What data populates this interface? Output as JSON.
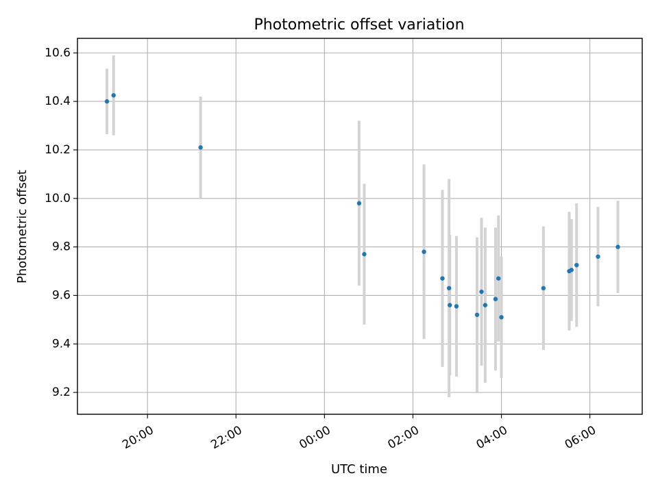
{
  "chart_data": {
    "type": "scatter",
    "title": "Photometric offset variation",
    "xlabel": "UTC time",
    "ylabel": "Photometric offset",
    "x_axis_kind": "time",
    "x_tick_labels": [
      "20:00",
      "22:00",
      "00:00",
      "02:00",
      "04:00",
      "06:00"
    ],
    "y_tick_labels": [
      "9.2",
      "9.4",
      "9.6",
      "9.8",
      "10.0",
      "10.2",
      "10.4",
      "10.6"
    ],
    "xlim": [
      "18:25",
      "07:11"
    ],
    "ylim": [
      9.11,
      10.66
    ],
    "grid": true,
    "legend": false,
    "colors": {
      "marker": "#1f77b4",
      "errorbar": "#d3d3d3",
      "grid": "#b0b0b0"
    },
    "points": [
      {
        "x": "19:05",
        "y": 10.4,
        "err_low": 0.135,
        "err_high": 0.135
      },
      {
        "x": "19:14",
        "y": 10.425,
        "err_low": 0.165,
        "err_high": 0.165
      },
      {
        "x": "21:12",
        "y": 10.21,
        "err_low": 0.21,
        "err_high": 0.21
      },
      {
        "x": "00:47",
        "y": 9.98,
        "err_low": 0.34,
        "err_high": 0.34
      },
      {
        "x": "00:54",
        "y": 9.77,
        "err_low": 0.29,
        "err_high": 0.29
      },
      {
        "x": "02:15",
        "y": 9.78,
        "err_low": 0.36,
        "err_high": 0.36
      },
      {
        "x": "02:40",
        "y": 9.67,
        "err_low": 0.365,
        "err_high": 0.365
      },
      {
        "x": "02:49",
        "y": 9.63,
        "err_low": 0.45,
        "err_high": 0.45
      },
      {
        "x": "02:50",
        "y": 9.56,
        "err_low": 0.29,
        "err_high": 0.29
      },
      {
        "x": "02:59",
        "y": 9.555,
        "err_low": 0.29,
        "err_high": 0.29
      },
      {
        "x": "03:27",
        "y": 9.52,
        "err_low": 0.32,
        "err_high": 0.32
      },
      {
        "x": "03:33",
        "y": 9.615,
        "err_low": 0.305,
        "err_high": 0.305
      },
      {
        "x": "03:38",
        "y": 9.56,
        "err_low": 0.32,
        "err_high": 0.32
      },
      {
        "x": "03:52",
        "y": 9.585,
        "err_low": 0.295,
        "err_high": 0.295
      },
      {
        "x": "03:56",
        "y": 9.67,
        "err_low": 0.26,
        "err_high": 0.26
      },
      {
        "x": "04:00",
        "y": 9.51,
        "err_low": 0.25,
        "err_high": 0.25
      },
      {
        "x": "04:57",
        "y": 9.63,
        "err_low": 0.255,
        "err_high": 0.255
      },
      {
        "x": "05:32",
        "y": 9.7,
        "err_low": 0.245,
        "err_high": 0.245
      },
      {
        "x": "05:35",
        "y": 9.705,
        "err_low": 0.21,
        "err_high": 0.21
      },
      {
        "x": "05:42",
        "y": 9.725,
        "err_low": 0.255,
        "err_high": 0.255
      },
      {
        "x": "06:11",
        "y": 9.76,
        "err_low": 0.205,
        "err_high": 0.205
      },
      {
        "x": "06:38",
        "y": 9.8,
        "err_low": 0.19,
        "err_high": 0.19
      }
    ]
  }
}
